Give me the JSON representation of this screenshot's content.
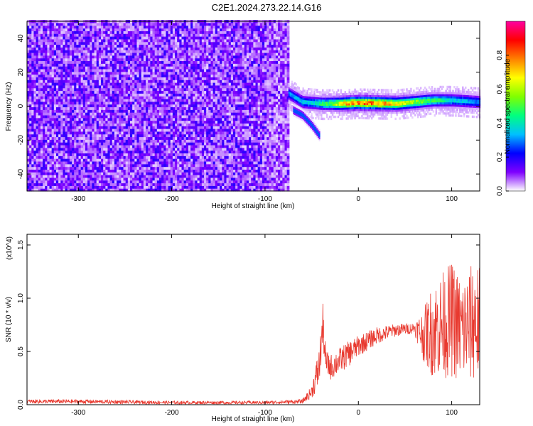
{
  "title": "C2E1.2024.273.22.14.G16",
  "chart_data": [
    {
      "type": "heatmap",
      "xlabel": "Height of straight line (km)",
      "ylabel": "Frequency (Hz)",
      "xlim": [
        -355,
        130
      ],
      "ylim": [
        -50,
        50
      ],
      "x_ticks": [
        -300,
        -200,
        -100,
        0,
        100
      ],
      "y_ticks": [
        -40,
        -20,
        0,
        20,
        40
      ],
      "colorbar": {
        "label": "Normalized spectral amplitude",
        "range": [
          0,
          1
        ],
        "ticks": [
          "0.0",
          "0.2",
          "0.4",
          "0.6",
          "0.8"
        ],
        "colors": [
          "#ffffff",
          "#7f00ff",
          "#0000ff",
          "#00c0ff",
          "#00ff80",
          "#80ff00",
          "#ffff00",
          "#ff8000",
          "#ff0000",
          "#ff00a0"
        ]
      },
      "noise_region": {
        "x_range": [
          -355,
          -75
        ],
        "freq_range": [
          -50,
          50
        ],
        "amplitude": "low (0.0-0.2)"
      },
      "signal_track": {
        "freq_vs_height": [
          [
            -75,
            7
          ],
          [
            -60,
            2
          ],
          [
            -40,
            1
          ],
          [
            -20,
            1
          ],
          [
            0,
            1.5
          ],
          [
            40,
            1
          ],
          [
            80,
            3
          ],
          [
            100,
            3
          ],
          [
            130,
            2
          ]
        ],
        "amplitude_vs_height": [
          [
            -75,
            0.35
          ],
          [
            -50,
            0.45
          ],
          [
            -30,
            0.6
          ],
          [
            -10,
            0.9
          ],
          [
            10,
            0.95
          ],
          [
            40,
            0.8
          ],
          [
            70,
            0.6
          ],
          [
            100,
            0.45
          ],
          [
            130,
            0.35
          ]
        ]
      },
      "secondary_branch": {
        "freq_vs_height": [
          [
            -70,
            -3
          ],
          [
            -60,
            -6
          ],
          [
            -50,
            -12
          ],
          [
            -42,
            -18
          ]
        ]
      }
    },
    {
      "type": "line",
      "xlabel": "Height of straight line (km)",
      "ylabel": "SNR (10 * v/v)",
      "y_multiplier": "(x10^4)",
      "xlim": [
        -355,
        130
      ],
      "ylim": [
        0,
        1.6
      ],
      "x_ticks": [
        -300,
        -200,
        -100,
        0,
        100
      ],
      "y_ticks": [
        0.0,
        0.5,
        1.0,
        1.5
      ],
      "color": "#e8392f",
      "series_envelope": {
        "x": [
          -355,
          -300,
          -200,
          -100,
          -60,
          -50,
          -42,
          -38,
          -35,
          -30,
          -10,
          0,
          20,
          40,
          60,
          70,
          80,
          90,
          100,
          110,
          120,
          125,
          130
        ],
        "mean": [
          0.03,
          0.03,
          0.02,
          0.02,
          0.03,
          0.12,
          0.35,
          0.75,
          0.4,
          0.35,
          0.48,
          0.55,
          0.65,
          0.7,
          0.72,
          0.65,
          0.7,
          0.75,
          0.8,
          0.7,
          0.75,
          0.8,
          0.75
        ],
        "spread": [
          0.02,
          0.02,
          0.015,
          0.015,
          0.02,
          0.06,
          0.2,
          0.2,
          0.12,
          0.12,
          0.12,
          0.1,
          0.08,
          0.06,
          0.05,
          0.25,
          0.45,
          0.5,
          0.55,
          0.5,
          0.55,
          0.6,
          0.55
        ]
      }
    }
  ]
}
